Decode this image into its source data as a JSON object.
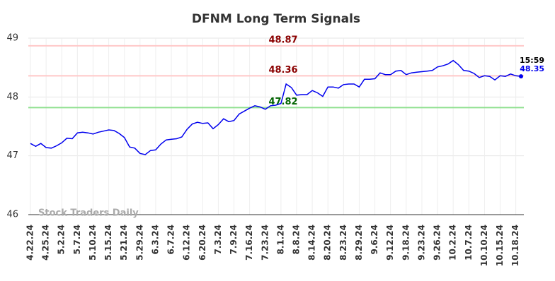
{
  "chart_data": {
    "type": "line",
    "title": "DFNM Long Term Signals",
    "categories": [
      "4.22.24",
      null,
      null,
      "4.25.24",
      null,
      null,
      "5.2.24",
      null,
      null,
      "5.7.24",
      null,
      null,
      "5.10.24",
      null,
      null,
      "5.15.24",
      null,
      null,
      "5.21.24",
      null,
      null,
      "5.29.24",
      null,
      null,
      "6.3.24",
      null,
      null,
      "6.7.24",
      null,
      null,
      "6.12.24",
      null,
      null,
      "6.20.24",
      null,
      null,
      "7.3.24",
      null,
      null,
      "7.9.24",
      null,
      null,
      "7.16.24",
      null,
      null,
      "7.23.24",
      null,
      null,
      "8.1.24",
      null,
      null,
      "8.8.24",
      null,
      null,
      "8.14.24",
      null,
      null,
      "8.20.24",
      null,
      null,
      "8.23.24",
      null,
      null,
      "8.29.24",
      null,
      null,
      "9.6.24",
      null,
      null,
      "9.12.24",
      null,
      null,
      "9.18.24",
      null,
      null,
      "9.23.24",
      null,
      null,
      "9.26.24",
      null,
      null,
      "10.2.24",
      null,
      null,
      "10.7.24",
      null,
      null,
      "10.10.24",
      null,
      null,
      "10.15.24",
      null,
      null,
      "10.18.24",
      null
    ],
    "values": [
      47.21,
      47.16,
      47.21,
      47.14,
      47.13,
      47.17,
      47.22,
      47.3,
      47.29,
      47.39,
      47.4,
      47.39,
      47.37,
      47.4,
      47.42,
      47.44,
      47.43,
      47.38,
      47.31,
      47.15,
      47.13,
      47.04,
      47.02,
      47.09,
      47.1,
      47.2,
      47.27,
      47.28,
      47.29,
      47.32,
      47.45,
      47.54,
      47.57,
      47.55,
      47.56,
      47.46,
      47.53,
      47.63,
      47.58,
      47.6,
      47.71,
      47.76,
      47.81,
      47.85,
      47.83,
      47.79,
      47.85,
      47.86,
      47.89,
      48.22,
      48.16,
      48.03,
      48.04,
      48.04,
      48.11,
      48.07,
      48.01,
      48.17,
      48.17,
      48.15,
      48.21,
      48.22,
      48.22,
      48.17,
      48.3,
      48.3,
      48.31,
      48.41,
      48.38,
      48.38,
      48.44,
      48.45,
      48.38,
      48.41,
      48.42,
      48.43,
      48.44,
      48.45,
      48.51,
      48.53,
      48.56,
      48.62,
      48.55,
      48.45,
      48.44,
      48.4,
      48.33,
      48.36,
      48.35,
      48.29,
      48.36,
      48.35,
      48.39,
      48.36,
      48.35
    ],
    "color": "#0000ee",
    "ylim": [
      46,
      49
    ],
    "yticks": [
      46,
      47,
      48,
      49
    ],
    "grid": true,
    "hlines": [
      {
        "value": 48.87,
        "color": "#ffc8c8",
        "label_color": "#8b0000"
      },
      {
        "value": 48.36,
        "color": "#ffc8c8",
        "label_color": "#8b0000"
      },
      {
        "value": 47.82,
        "color": "#90e090",
        "label_color": "#006400"
      }
    ],
    "last_time": "15:59",
    "watermark": "Stock Traders Daily"
  }
}
